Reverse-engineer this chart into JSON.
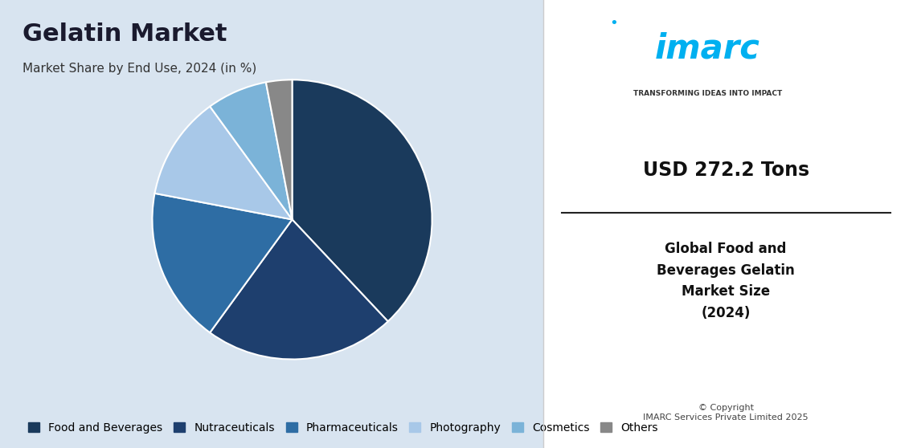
{
  "title": "Gelatin Market",
  "subtitle": "Market Share by End Use, 2024 (in %)",
  "slices": [
    {
      "label": "Food and Beverages",
      "value": 38,
      "color": "#1a3a5c"
    },
    {
      "label": "Nutraceuticals",
      "value": 22,
      "color": "#1e3f6e"
    },
    {
      "label": "Pharmaceuticals",
      "value": 18,
      "color": "#2e6da4"
    },
    {
      "label": "Photography",
      "value": 12,
      "color": "#a8c8e8"
    },
    {
      "label": "Cosmetics",
      "value": 7,
      "color": "#7bb3d8"
    },
    {
      "label": "Others",
      "value": 3,
      "color": "#888888"
    }
  ],
  "bg_color": "#d8e4f0",
  "right_panel_bg": "#ffffff",
  "usd_value": "USD 272.2 Tons",
  "right_text": "Global Food and\nBeverages Gelatin\nMarket Size\n(2024)",
  "imarc_color": "#00b0f0",
  "imarc_tagline": "TRANSFORMING IDEAS INTO IMPACT",
  "copyright_text": "© Copyright\nIMARC Services Private Limited 2025",
  "title_fontsize": 22,
  "subtitle_fontsize": 11,
  "legend_fontsize": 10
}
